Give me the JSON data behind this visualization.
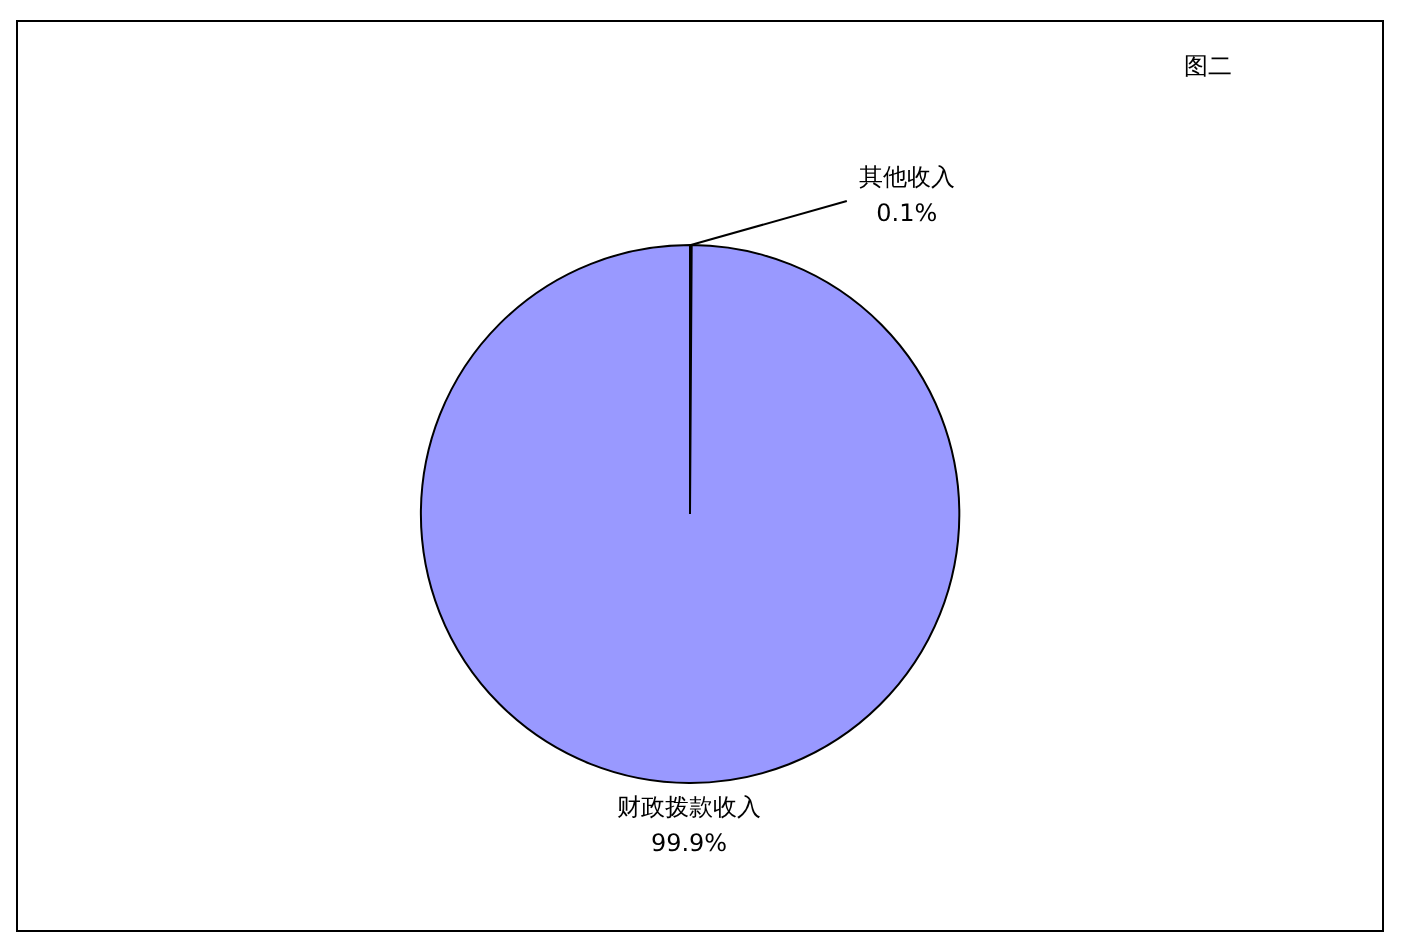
{
  "chart_data": {
    "type": "pie",
    "title": "图二",
    "categories": [
      "其他收入",
      "财政拨款收入"
    ],
    "values": [
      0.1,
      99.9
    ],
    "colors": [
      "#993366",
      "#9999ff"
    ],
    "value_labels": [
      "0.1%",
      "99.9%"
    ],
    "legend": false
  }
}
